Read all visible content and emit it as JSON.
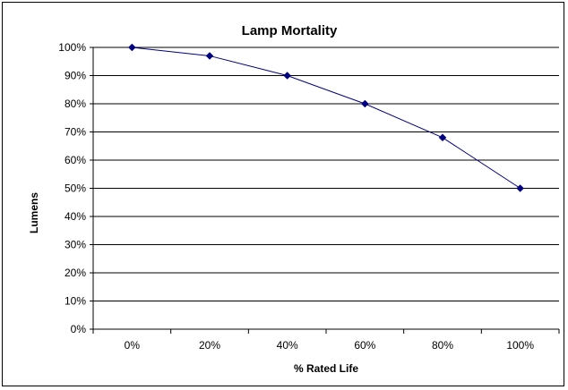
{
  "chart_data": {
    "type": "line",
    "title": "Lamp Mortality",
    "xlabel": "% Rated Life",
    "ylabel": "Lumens",
    "categories": [
      "0%",
      "20%",
      "40%",
      "60%",
      "80%",
      "100%"
    ],
    "x": [
      0,
      20,
      40,
      60,
      80,
      100
    ],
    "y_ticks": [
      "0%",
      "10%",
      "20%",
      "30%",
      "40%",
      "50%",
      "60%",
      "70%",
      "80%",
      "90%",
      "100%"
    ],
    "series": [
      {
        "values": [
          100,
          97,
          90,
          80,
          68,
          50
        ]
      }
    ],
    "ylim": [
      0,
      100
    ],
    "grid": "horizontal",
    "legend": "none",
    "colors": {
      "series": "#000080",
      "grid": "#000000"
    }
  }
}
